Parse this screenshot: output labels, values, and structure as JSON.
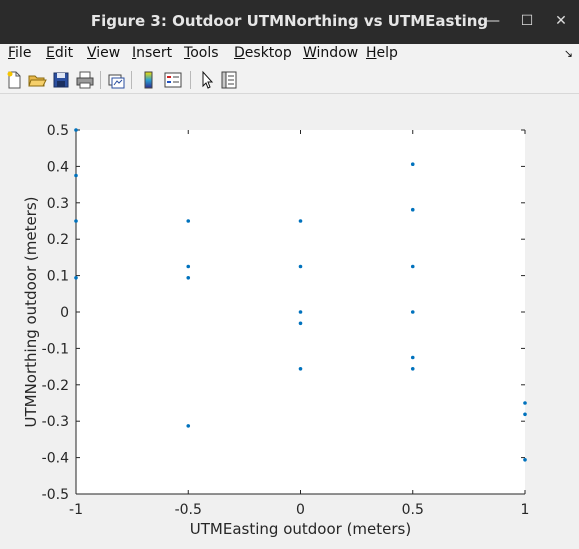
{
  "window": {
    "title": "Figure 3: Outdoor UTMNorthing vs UTMEasting",
    "minimize_glyph": "—",
    "maximize_glyph": "☐",
    "close_glyph": "✕"
  },
  "menu": {
    "items": [
      {
        "label": "File",
        "key": "F",
        "rest": "ile"
      },
      {
        "label": "Edit",
        "key": "E",
        "rest": "dit"
      },
      {
        "label": "View",
        "key": "V",
        "rest": "iew"
      },
      {
        "label": "Insert",
        "key": "I",
        "rest": "nsert"
      },
      {
        "label": "Tools",
        "key": "T",
        "rest": "ools"
      },
      {
        "label": "Desktop",
        "key": "D",
        "rest": "esktop"
      },
      {
        "label": "Window",
        "key": "W",
        "rest": "indow"
      },
      {
        "label": "Help",
        "key": "H",
        "rest": "elp"
      }
    ],
    "dock_glyph": "↘"
  },
  "toolbar": {
    "icons": [
      "new-figure-icon",
      "open-file-icon",
      "save-icon",
      "print-icon",
      "link-plot-icon",
      "insert-colorbar-icon",
      "insert-legend-icon",
      "edit-plot-arrow-icon",
      "property-inspector-icon"
    ]
  },
  "chart_data": {
    "type": "scatter",
    "title": "",
    "xlabel": "UTMEasting outdoor (meters)",
    "ylabel": "UTMNorthing outdoor (meters)",
    "xlim": [
      -1,
      1
    ],
    "ylim": [
      -0.5,
      0.5
    ],
    "xticks": [
      -1,
      -0.5,
      0,
      0.5,
      1
    ],
    "xtick_labels": [
      "-1",
      "-0.5",
      "0",
      "0.5",
      "1"
    ],
    "yticks": [
      -0.5,
      -0.4,
      -0.3,
      -0.2,
      -0.1,
      0,
      0.1,
      0.2,
      0.3,
      0.4,
      0.5
    ],
    "ytick_labels": [
      "-0.5",
      "-0.4",
      "-0.3",
      "-0.2",
      "-0.1",
      "0",
      "0.1",
      "0.2",
      "0.3",
      "0.4",
      "0.5"
    ],
    "grid": false,
    "marker_color": "#0072bd",
    "points": [
      {
        "x": -1,
        "y": 0.5
      },
      {
        "x": -1,
        "y": 0.375
      },
      {
        "x": -1,
        "y": 0.25
      },
      {
        "x": -1,
        "y": 0.094
      },
      {
        "x": -0.5,
        "y": 0.25
      },
      {
        "x": -0.5,
        "y": 0.125
      },
      {
        "x": -0.5,
        "y": 0.094
      },
      {
        "x": -0.5,
        "y": -0.313
      },
      {
        "x": 0,
        "y": 0.25
      },
      {
        "x": 0,
        "y": 0.125
      },
      {
        "x": 0,
        "y": 0
      },
      {
        "x": 0,
        "y": -0.031
      },
      {
        "x": 0,
        "y": -0.156
      },
      {
        "x": 0.5,
        "y": 0.406
      },
      {
        "x": 0.5,
        "y": 0.281
      },
      {
        "x": 0.5,
        "y": 0.125
      },
      {
        "x": 0.5,
        "y": 0
      },
      {
        "x": 0.5,
        "y": -0.125
      },
      {
        "x": 0.5,
        "y": -0.156
      },
      {
        "x": 1,
        "y": -0.25
      },
      {
        "x": 1,
        "y": -0.281
      },
      {
        "x": 1,
        "y": -0.406
      }
    ]
  }
}
